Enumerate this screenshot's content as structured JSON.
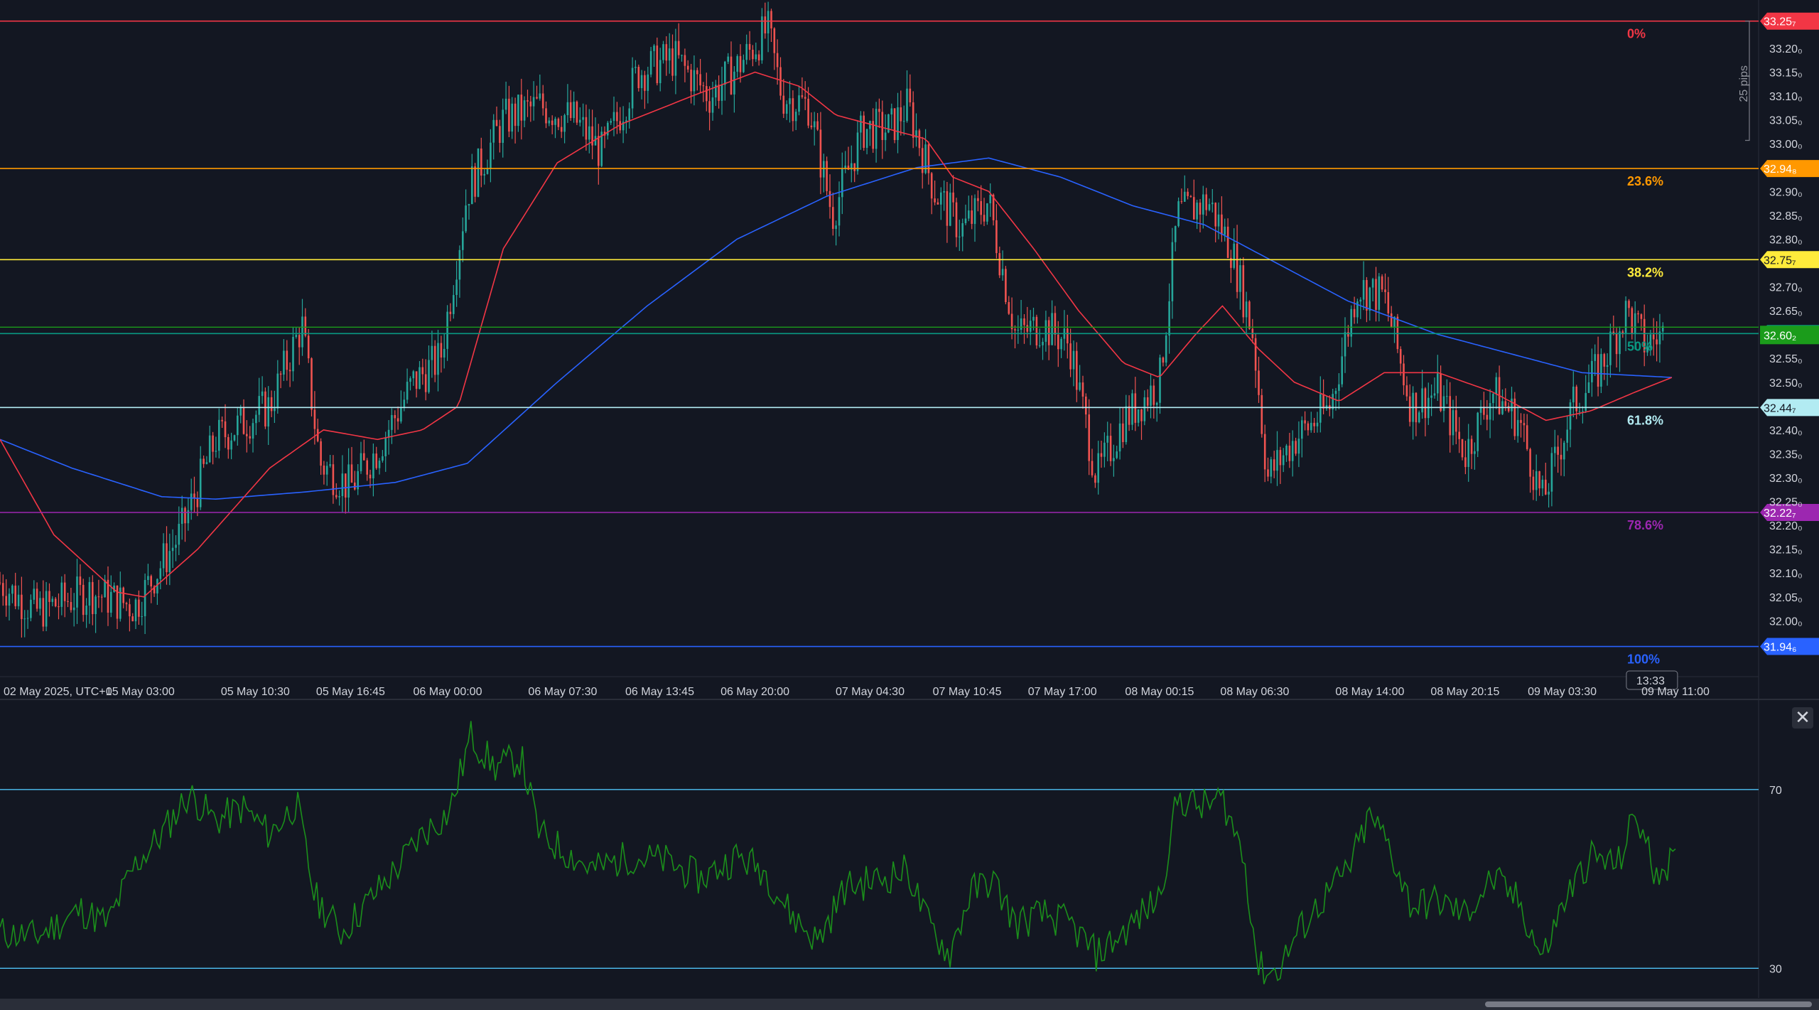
{
  "chart_data": [
    {
      "type": "candlestick",
      "title": "",
      "ylim": [
        31.92,
        33.27
      ],
      "y_ticks": [
        {
          "value": 33.2,
          "label": "33.20₀"
        },
        {
          "value": 33.15,
          "label": "33.15₀"
        },
        {
          "value": 33.1,
          "label": "33.10₀"
        },
        {
          "value": 33.05,
          "label": "33.05₀"
        },
        {
          "value": 33.0,
          "label": "33.00₀"
        },
        {
          "value": 32.9,
          "label": "32.90₀"
        },
        {
          "value": 32.85,
          "label": "32.85₀"
        },
        {
          "value": 32.8,
          "label": "32.80₀"
        },
        {
          "value": 32.7,
          "label": "32.70₀"
        },
        {
          "value": 32.65,
          "label": "32.65₀"
        },
        {
          "value": 32.55,
          "label": "32.55₀"
        },
        {
          "value": 32.5,
          "label": "32.50₀"
        },
        {
          "value": 32.4,
          "label": "32.40₀"
        },
        {
          "value": 32.35,
          "label": "32.35₀"
        },
        {
          "value": 32.3,
          "label": "32.30₀"
        },
        {
          "value": 32.25,
          "label": "32.25₀"
        },
        {
          "value": 32.2,
          "label": "32.20₀"
        },
        {
          "value": 32.15,
          "label": "32.15₀"
        },
        {
          "value": 32.1,
          "label": "32.10₀"
        },
        {
          "value": 32.05,
          "label": "32.05₀"
        },
        {
          "value": 32.0,
          "label": "32.00₀"
        }
      ],
      "time_labels": [
        {
          "label": "02 May 2025, UTC+1",
          "t": 0
        },
        {
          "label": "05 May 03:00",
          "t": 0.078
        },
        {
          "label": "05 May 10:30",
          "t": 0.142
        },
        {
          "label": "05 May 16:45",
          "t": 0.195
        },
        {
          "label": "06 May 00:00",
          "t": 0.249
        },
        {
          "label": "06 May 07:30",
          "t": 0.313
        },
        {
          "label": "06 May 13:45",
          "t": 0.367
        },
        {
          "label": "06 May 20:00",
          "t": 0.42
        },
        {
          "label": "07 May 04:30",
          "t": 0.484
        },
        {
          "label": "07 May 10:45",
          "t": 0.538
        },
        {
          "label": "07 May 17:00",
          "t": 0.591
        },
        {
          "label": "08 May 00:15",
          "t": 0.645
        },
        {
          "label": "08 May 06:30",
          "t": 0.698
        },
        {
          "label": "08 May 14:00",
          "t": 0.762
        },
        {
          "label": "08 May 20:15",
          "t": 0.815
        },
        {
          "label": "09 May 03:30",
          "t": 0.869
        },
        {
          "label": "09 May 11:00",
          "t": 0.932
        }
      ],
      "fib_levels": [
        {
          "ratio": "0%",
          "price": 33.257,
          "badge": "33.25₇",
          "color": "#f23645"
        },
        {
          "ratio": "23.6%",
          "price": 32.948,
          "badge": "32.94₈",
          "color": "#ff9800"
        },
        {
          "ratio": "38.2%",
          "price": 32.757,
          "badge": "32.75₇",
          "color": "#ffeb3b"
        },
        {
          "ratio": "50%",
          "price": 32.602,
          "badge": "32.60₂",
          "color": "#089981"
        },
        {
          "ratio": "61.8%",
          "price": 32.447,
          "badge": "32.44₇",
          "color": "#b2ebf2"
        },
        {
          "ratio": "78.6%",
          "price": 32.227,
          "badge": "32.22₇",
          "color": "#9c27b0"
        },
        {
          "ratio": "100%",
          "price": 31.946,
          "badge": "31.94₆",
          "color": "#2962ff"
        }
      ],
      "current_price": {
        "price": 32.602,
        "badge": "32.60₂",
        "countdown": "13:33"
      },
      "measure_label": "25 pips",
      "ohlc_anchors": [
        {
          "t": 0.0,
          "p": 32.08
        },
        {
          "t": 0.02,
          "p": 32.02
        },
        {
          "t": 0.05,
          "p": 32.06
        },
        {
          "t": 0.075,
          "p": 32.03
        },
        {
          "t": 0.1,
          "p": 32.18
        },
        {
          "t": 0.12,
          "p": 32.38
        },
        {
          "t": 0.15,
          "p": 32.45
        },
        {
          "t": 0.168,
          "p": 32.62
        },
        {
          "t": 0.178,
          "p": 32.33
        },
        {
          "t": 0.195,
          "p": 32.28
        },
        {
          "t": 0.21,
          "p": 32.36
        },
        {
          "t": 0.23,
          "p": 32.5
        },
        {
          "t": 0.245,
          "p": 32.55
        },
        {
          "t": 0.26,
          "p": 32.9
        },
        {
          "t": 0.28,
          "p": 33.05
        },
        {
          "t": 0.3,
          "p": 33.08
        },
        {
          "t": 0.32,
          "p": 33.05
        },
        {
          "t": 0.335,
          "p": 32.98
        },
        {
          "t": 0.355,
          "p": 33.15
        },
        {
          "t": 0.375,
          "p": 33.18
        },
        {
          "t": 0.395,
          "p": 33.1
        },
        {
          "t": 0.41,
          "p": 33.16
        },
        {
          "t": 0.427,
          "p": 33.24
        },
        {
          "t": 0.435,
          "p": 33.1
        },
        {
          "t": 0.45,
          "p": 33.08
        },
        {
          "t": 0.463,
          "p": 32.85
        },
        {
          "t": 0.48,
          "p": 33.03
        },
        {
          "t": 0.495,
          "p": 33.03
        },
        {
          "t": 0.505,
          "p": 33.08
        },
        {
          "t": 0.52,
          "p": 32.9
        },
        {
          "t": 0.535,
          "p": 32.82
        },
        {
          "t": 0.55,
          "p": 32.88
        },
        {
          "t": 0.565,
          "p": 32.6
        },
        {
          "t": 0.58,
          "p": 32.62
        },
        {
          "t": 0.595,
          "p": 32.58
        },
        {
          "t": 0.61,
          "p": 32.3
        },
        {
          "t": 0.625,
          "p": 32.42
        },
        {
          "t": 0.645,
          "p": 32.5
        },
        {
          "t": 0.655,
          "p": 32.85
        },
        {
          "t": 0.672,
          "p": 32.88
        },
        {
          "t": 0.685,
          "p": 32.78
        },
        {
          "t": 0.697,
          "p": 32.6
        },
        {
          "t": 0.705,
          "p": 32.3
        },
        {
          "t": 0.72,
          "p": 32.38
        },
        {
          "t": 0.74,
          "p": 32.45
        },
        {
          "t": 0.755,
          "p": 32.7
        },
        {
          "t": 0.77,
          "p": 32.68
        },
        {
          "t": 0.785,
          "p": 32.45
        },
        {
          "t": 0.8,
          "p": 32.48
        },
        {
          "t": 0.815,
          "p": 32.35
        },
        {
          "t": 0.83,
          "p": 32.48
        },
        {
          "t": 0.845,
          "p": 32.42
        },
        {
          "t": 0.858,
          "p": 32.25
        },
        {
          "t": 0.875,
          "p": 32.45
        },
        {
          "t": 0.89,
          "p": 32.53
        },
        {
          "t": 0.905,
          "p": 32.65
        },
        {
          "t": 0.915,
          "p": 32.58
        },
        {
          "t": 0.925,
          "p": 32.6
        }
      ],
      "ema_fast_anchors": [
        {
          "t": 0.0,
          "p": 32.38
        },
        {
          "t": 0.03,
          "p": 32.18
        },
        {
          "t": 0.065,
          "p": 32.06
        },
        {
          "t": 0.08,
          "p": 32.05
        },
        {
          "t": 0.11,
          "p": 32.15
        },
        {
          "t": 0.15,
          "p": 32.32
        },
        {
          "t": 0.18,
          "p": 32.4
        },
        {
          "t": 0.21,
          "p": 32.38
        },
        {
          "t": 0.235,
          "p": 32.4
        },
        {
          "t": 0.255,
          "p": 32.45
        },
        {
          "t": 0.28,
          "p": 32.78
        },
        {
          "t": 0.31,
          "p": 32.96
        },
        {
          "t": 0.345,
          "p": 33.04
        },
        {
          "t": 0.385,
          "p": 33.1
        },
        {
          "t": 0.42,
          "p": 33.15
        },
        {
          "t": 0.445,
          "p": 33.12
        },
        {
          "t": 0.465,
          "p": 33.06
        },
        {
          "t": 0.495,
          "p": 33.03
        },
        {
          "t": 0.515,
          "p": 33.01
        },
        {
          "t": 0.53,
          "p": 32.93
        },
        {
          "t": 0.55,
          "p": 32.9
        },
        {
          "t": 0.575,
          "p": 32.78
        },
        {
          "t": 0.6,
          "p": 32.65
        },
        {
          "t": 0.625,
          "p": 32.54
        },
        {
          "t": 0.645,
          "p": 32.51
        },
        {
          "t": 0.665,
          "p": 32.6
        },
        {
          "t": 0.68,
          "p": 32.66
        },
        {
          "t": 0.7,
          "p": 32.57
        },
        {
          "t": 0.72,
          "p": 32.5
        },
        {
          "t": 0.745,
          "p": 32.46
        },
        {
          "t": 0.77,
          "p": 32.52
        },
        {
          "t": 0.8,
          "p": 32.52
        },
        {
          "t": 0.83,
          "p": 32.48
        },
        {
          "t": 0.86,
          "p": 32.42
        },
        {
          "t": 0.885,
          "p": 32.44
        },
        {
          "t": 0.91,
          "p": 32.48
        },
        {
          "t": 0.93,
          "p": 32.51
        }
      ],
      "ema_slow_anchors": [
        {
          "t": 0.0,
          "p": 32.38
        },
        {
          "t": 0.04,
          "p": 32.32
        },
        {
          "t": 0.09,
          "p": 32.26
        },
        {
          "t": 0.12,
          "p": 32.255
        },
        {
          "t": 0.17,
          "p": 32.27
        },
        {
          "t": 0.22,
          "p": 32.29
        },
        {
          "t": 0.26,
          "p": 32.33
        },
        {
          "t": 0.31,
          "p": 32.5
        },
        {
          "t": 0.36,
          "p": 32.66
        },
        {
          "t": 0.41,
          "p": 32.8
        },
        {
          "t": 0.46,
          "p": 32.89
        },
        {
          "t": 0.51,
          "p": 32.95
        },
        {
          "t": 0.55,
          "p": 32.97
        },
        {
          "t": 0.59,
          "p": 32.93
        },
        {
          "t": 0.63,
          "p": 32.87
        },
        {
          "t": 0.67,
          "p": 32.83
        },
        {
          "t": 0.71,
          "p": 32.75
        },
        {
          "t": 0.75,
          "p": 32.67
        },
        {
          "t": 0.8,
          "p": 32.6
        },
        {
          "t": 0.84,
          "p": 32.56
        },
        {
          "t": 0.88,
          "p": 32.52
        },
        {
          "t": 0.93,
          "p": 32.51
        }
      ]
    },
    {
      "type": "line",
      "title": "",
      "ylim": [
        24,
        90
      ],
      "y_ticks": [
        {
          "value": 70,
          "label": "70"
        },
        {
          "value": 30,
          "label": "30"
        }
      ],
      "levels": [
        70,
        30
      ],
      "series_anchors": [
        {
          "t": 0.0,
          "v": 38
        },
        {
          "t": 0.02,
          "v": 37
        },
        {
          "t": 0.045,
          "v": 43
        },
        {
          "t": 0.06,
          "v": 40
        },
        {
          "t": 0.075,
          "v": 53
        },
        {
          "t": 0.09,
          "v": 60
        },
        {
          "t": 0.105,
          "v": 69
        },
        {
          "t": 0.12,
          "v": 63
        },
        {
          "t": 0.135,
          "v": 66
        },
        {
          "t": 0.15,
          "v": 60
        },
        {
          "t": 0.165,
          "v": 67
        },
        {
          "t": 0.175,
          "v": 46
        },
        {
          "t": 0.19,
          "v": 38
        },
        {
          "t": 0.205,
          "v": 45
        },
        {
          "t": 0.22,
          "v": 52
        },
        {
          "t": 0.235,
          "v": 60
        },
        {
          "t": 0.25,
          "v": 65
        },
        {
          "t": 0.262,
          "v": 82
        },
        {
          "t": 0.275,
          "v": 75
        },
        {
          "t": 0.29,
          "v": 77
        },
        {
          "t": 0.3,
          "v": 60
        },
        {
          "t": 0.315,
          "v": 56
        },
        {
          "t": 0.33,
          "v": 52
        },
        {
          "t": 0.35,
          "v": 55
        },
        {
          "t": 0.37,
          "v": 54
        },
        {
          "t": 0.39,
          "v": 50
        },
        {
          "t": 0.41,
          "v": 55
        },
        {
          "t": 0.425,
          "v": 52
        },
        {
          "t": 0.44,
          "v": 42
        },
        {
          "t": 0.455,
          "v": 36
        },
        {
          "t": 0.47,
          "v": 48
        },
        {
          "t": 0.49,
          "v": 50
        },
        {
          "t": 0.505,
          "v": 52
        },
        {
          "t": 0.515,
          "v": 41
        },
        {
          "t": 0.528,
          "v": 33
        },
        {
          "t": 0.54,
          "v": 47
        },
        {
          "t": 0.552,
          "v": 50
        },
        {
          "t": 0.565,
          "v": 40
        },
        {
          "t": 0.58,
          "v": 42
        },
        {
          "t": 0.595,
          "v": 40
        },
        {
          "t": 0.61,
          "v": 33
        },
        {
          "t": 0.625,
          "v": 38
        },
        {
          "t": 0.645,
          "v": 46
        },
        {
          "t": 0.655,
          "v": 68
        },
        {
          "t": 0.668,
          "v": 66
        },
        {
          "t": 0.68,
          "v": 68
        },
        {
          "t": 0.692,
          "v": 55
        },
        {
          "t": 0.7,
          "v": 30
        },
        {
          "t": 0.71,
          "v": 29
        },
        {
          "t": 0.722,
          "v": 38
        },
        {
          "t": 0.735,
          "v": 45
        },
        {
          "t": 0.75,
          "v": 52
        },
        {
          "t": 0.762,
          "v": 64
        },
        {
          "t": 0.772,
          "v": 58
        },
        {
          "t": 0.785,
          "v": 44
        },
        {
          "t": 0.8,
          "v": 45
        },
        {
          "t": 0.815,
          "v": 42
        },
        {
          "t": 0.83,
          "v": 50
        },
        {
          "t": 0.845,
          "v": 45
        },
        {
          "t": 0.858,
          "v": 32
        },
        {
          "t": 0.87,
          "v": 45
        },
        {
          "t": 0.885,
          "v": 55
        },
        {
          "t": 0.9,
          "v": 53
        },
        {
          "t": 0.91,
          "v": 65
        },
        {
          "t": 0.92,
          "v": 52
        },
        {
          "t": 0.932,
          "v": 54
        }
      ]
    }
  ],
  "ui": {
    "close_glyph": "✕",
    "close_icon": "close-icon"
  },
  "colors": {
    "background": "#131722",
    "bull": "#26a69a",
    "bear": "#ef5350",
    "ema_fast": "#f23645",
    "ema_slow": "#2962ff",
    "rsi_line": "#1b8f1b",
    "rsi_level": "#4fc3f7",
    "axis_text": "#d1d4dc",
    "price_badge_current": "#1b9c1b"
  }
}
